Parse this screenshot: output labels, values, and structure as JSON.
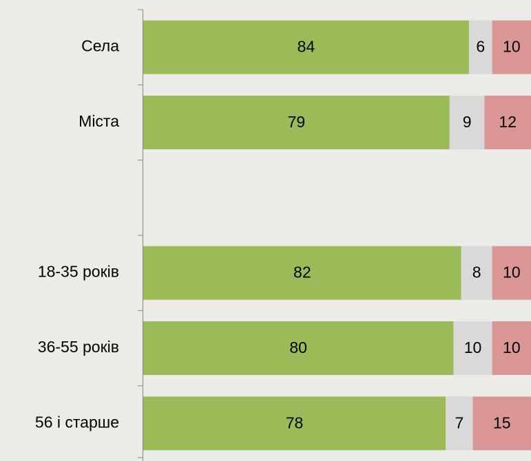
{
  "chart_data": {
    "type": "stacked-barh",
    "categories": [
      "Села",
      "Міста",
      null,
      "18-35 років",
      "36-55 років",
      "56 і старше"
    ],
    "series": [
      {
        "color": "#9bbb59",
        "values": [
          84,
          79,
          null,
          82,
          80,
          78
        ]
      },
      {
        "color": "#d9d9d9",
        "values": [
          6,
          9,
          null,
          8,
          10,
          7
        ]
      },
      {
        "color": "#d99694",
        "values": [
          10,
          12,
          null,
          10,
          10,
          15
        ]
      }
    ],
    "xlim": [
      0,
      100
    ]
  }
}
